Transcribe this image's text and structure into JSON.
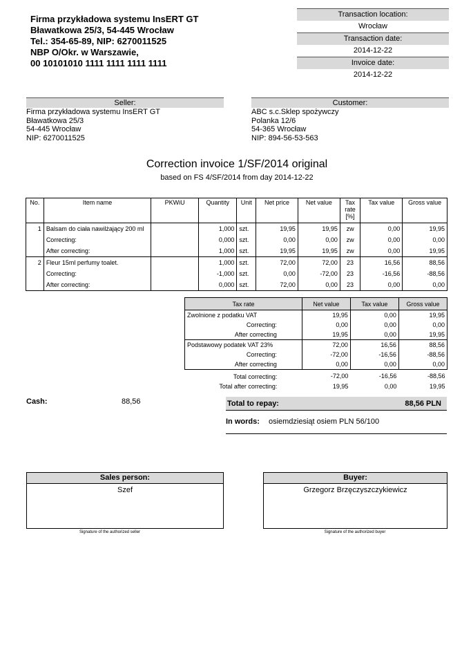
{
  "issuer": {
    "lines": [
      "Firma przykładowa systemu InsERT GT",
      "Bławatkowa 25/3, 54-445 Wrocław",
      "Tel.: 354-65-89, NIP: 6270011525",
      "NBP O/Okr. w Warszawie,",
      "00 10101010 1111 1111 1111 1111"
    ]
  },
  "meta": {
    "location_label": "Transaction location:",
    "location": "Wrocław",
    "date_label": "Transaction date:",
    "date": "2014-12-22",
    "invoice_date_label": "Invoice date:",
    "invoice_date": "2014-12-22"
  },
  "seller": {
    "label": "Seller:",
    "lines": [
      "Firma przykładowa systemu InsERT GT",
      "Bławatkowa 25/3",
      "54-445 Wrocław",
      "NIP: 6270011525"
    ]
  },
  "customer": {
    "label": "Customer:",
    "lines": [
      "ABC s.c.Sklep spożywczy",
      "Polanka  12/6",
      "54-365 Wrocław",
      "NIP: 894-56-53-563"
    ]
  },
  "title": "Correction invoice  1/SF/2014 original",
  "subtitle": "based on FS 4/SF/2014 from day 2014-12-22",
  "items": {
    "headers": [
      "No.",
      "Item name",
      "PKWiU",
      "Quantity",
      "Unit",
      "Net price",
      "Net value",
      "Tax rate [%]",
      "Tax value",
      "Gross value"
    ],
    "rows": [
      [
        "1",
        "Balsam do ciała nawilżający 200 ml",
        "",
        "1,000",
        "szt.",
        "19,95",
        "19,95",
        "zw",
        "0,00",
        "19,95"
      ],
      [
        "",
        "Correcting:",
        "",
        "0,000",
        "szt.",
        "0,00",
        "0,00",
        "zw",
        "0,00",
        "0,00"
      ],
      [
        "",
        "After correcting:",
        "",
        "1,000",
        "szt.",
        "19,95",
        "19,95",
        "zw",
        "0,00",
        "19,95"
      ],
      [
        "2",
        "Fleur 15ml perfumy toalet.",
        "",
        "1,000",
        "szt.",
        "72,00",
        "72,00",
        "23",
        "16,56",
        "88,56"
      ],
      [
        "",
        "Correcting:",
        "",
        "-1,000",
        "szt.",
        "0,00",
        "-72,00",
        "23",
        "-16,56",
        "-88,56"
      ],
      [
        "",
        "After correcting:",
        "",
        "0,000",
        "szt.",
        "72,00",
        "0,00",
        "23",
        "0,00",
        "0,00"
      ]
    ]
  },
  "tax_summary": {
    "headers": [
      "Tax rate",
      "Net value",
      "Tax value",
      "Gross value"
    ],
    "rows": [
      [
        "Zwolnione z podatku VAT",
        "19,95",
        "0,00",
        "19,95"
      ],
      [
        "Correcting:",
        "0,00",
        "0,00",
        "0,00"
      ],
      [
        "After correcting",
        "19,95",
        "0,00",
        "19,95"
      ],
      [
        "Podstawowy podatek VAT 23%",
        "72,00",
        "16,56",
        "88,56"
      ],
      [
        "Correcting:",
        "-72,00",
        "-16,56",
        "-88,56"
      ],
      [
        "After correcting",
        "0,00",
        "0,00",
        "0,00"
      ]
    ],
    "totals": [
      [
        "Total correcting:",
        "-72,00",
        "-16,56",
        "-88,56"
      ],
      [
        "Total after correcting:",
        "19,95",
        "0,00",
        "19,95"
      ]
    ]
  },
  "payment": {
    "cash_label": "Cash:",
    "cash": "88,56",
    "total_label": "Total to repay:",
    "total": "88,56  PLN",
    "words_label": "In words:",
    "words": "osiemdziesiąt osiem  PLN 56/100"
  },
  "signatures": {
    "sales_label": "Sales person:",
    "sales": "Szef",
    "sales_caption": "Signature of the authorized seller",
    "buyer_label": "Buyer:",
    "buyer": "Grzegorz Brzęczyszczykiewicz",
    "buyer_caption": "Signature of the authorized buyer"
  }
}
